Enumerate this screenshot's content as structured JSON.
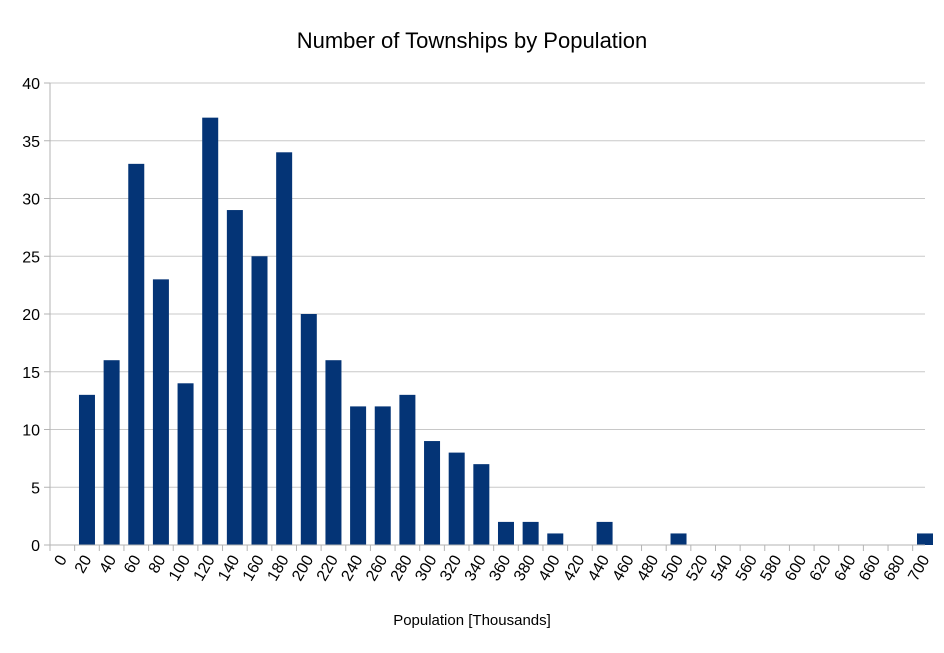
{
  "chart_data": {
    "type": "bar",
    "title": "Number of Townships by Population",
    "xlabel": "Population [Thousands]",
    "ylabel": "",
    "ylim": [
      0,
      40
    ],
    "yticks": [
      0,
      5,
      10,
      15,
      20,
      25,
      30,
      35,
      40
    ],
    "grid": true,
    "legend": "none",
    "bar_color": "#043476",
    "categories": [
      "0",
      "20",
      "40",
      "60",
      "80",
      "100",
      "120",
      "140",
      "160",
      "180",
      "200",
      "220",
      "240",
      "260",
      "280",
      "300",
      "320",
      "340",
      "360",
      "380",
      "400",
      "420",
      "440",
      "460",
      "480",
      "500",
      "520",
      "540",
      "560",
      "580",
      "600",
      "620",
      "640",
      "660",
      "680",
      "700"
    ],
    "values": [
      0,
      13,
      16,
      33,
      23,
      14,
      37,
      29,
      25,
      34,
      20,
      16,
      12,
      12,
      13,
      9,
      8,
      7,
      2,
      2,
      1,
      0,
      2,
      0,
      0,
      1,
      0,
      0,
      0,
      0,
      0,
      0,
      0,
      0,
      0,
      1
    ]
  }
}
